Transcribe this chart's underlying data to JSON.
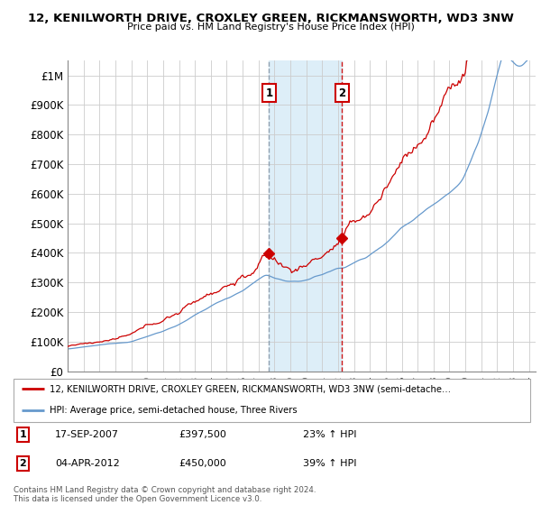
{
  "title1": "12, KENILWORTH DRIVE, CROXLEY GREEN, RICKMANSWORTH, WD3 3NW",
  "title2": "Price paid vs. HM Land Registry's House Price Index (HPI)",
  "ylim": [
    0,
    1050000
  ],
  "yticks": [
    0,
    100000,
    200000,
    300000,
    400000,
    500000,
    600000,
    700000,
    800000,
    900000,
    1000000
  ],
  "ytick_labels": [
    "£0",
    "£100K",
    "£200K",
    "£300K",
    "£400K",
    "£500K",
    "£600K",
    "£700K",
    "£800K",
    "£900K",
    "£1M"
  ],
  "hpi_color": "#6699cc",
  "price_color": "#cc0000",
  "shade_color": "#ddeef8",
  "marker1_color": "#aabbcc",
  "marker2_color": "#cc0000",
  "marker1_date": "17-SEP-2007",
  "marker1_price": 397500,
  "marker1_hpi_pct": "23%",
  "marker2_date": "04-APR-2012",
  "marker2_price": 450000,
  "marker2_hpi_pct": "39%",
  "legend_line1": "12, KENILWORTH DRIVE, CROXLEY GREEN, RICKMANSWORTH, WD3 3NW (semi-detache…",
  "legend_line2": "HPI: Average price, semi-detached house, Three Rivers",
  "footer": "Contains HM Land Registry data © Crown copyright and database right 2024.\nThis data is licensed under the Open Government Licence v3.0.",
  "start_year": 1995,
  "end_year": 2024
}
